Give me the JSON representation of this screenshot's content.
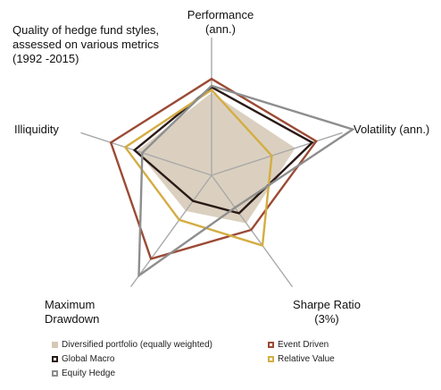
{
  "chart_data": {
    "type": "radar",
    "title": "Quality of hedge fund styles,\nassessed on various metrics\n(1992 -2015)",
    "axes": [
      "Performance\n(ann.)",
      "Volatility (ann.)",
      "Sharpe Ratio\n(3%)",
      "Maximum\nDrawdown",
      "Illiquidity"
    ],
    "scale_max": 1.0,
    "series": [
      {
        "name": "Diversified portfolio (equally weighted)",
        "values": [
          0.6,
          0.64,
          0.43,
          0.32,
          0.57
        ],
        "color": "#d5c8b4",
        "fill": true
      },
      {
        "name": "Event Driven",
        "values": [
          0.7,
          0.8,
          0.49,
          0.75,
          0.77
        ],
        "color": "#9b4a35",
        "fill": false
      },
      {
        "name": "Global Macro",
        "values": [
          0.64,
          0.77,
          0.34,
          0.23,
          0.59
        ],
        "color": "#2a1a17",
        "fill": false
      },
      {
        "name": "Relative Value",
        "values": [
          0.62,
          0.46,
          0.63,
          0.4,
          0.66
        ],
        "color": "#d4ad43",
        "fill": false
      },
      {
        "name": "Equity Hedge",
        "values": [
          0.65,
          1.08,
          0.29,
          0.9,
          0.53
        ],
        "color": "#8e8e8e",
        "fill": false
      }
    ]
  },
  "legend_labels": [
    "Diversified portfolio (equally weighted)",
    "Event Driven",
    "Global Macro",
    "Relative Value",
    "Equity Hedge"
  ]
}
